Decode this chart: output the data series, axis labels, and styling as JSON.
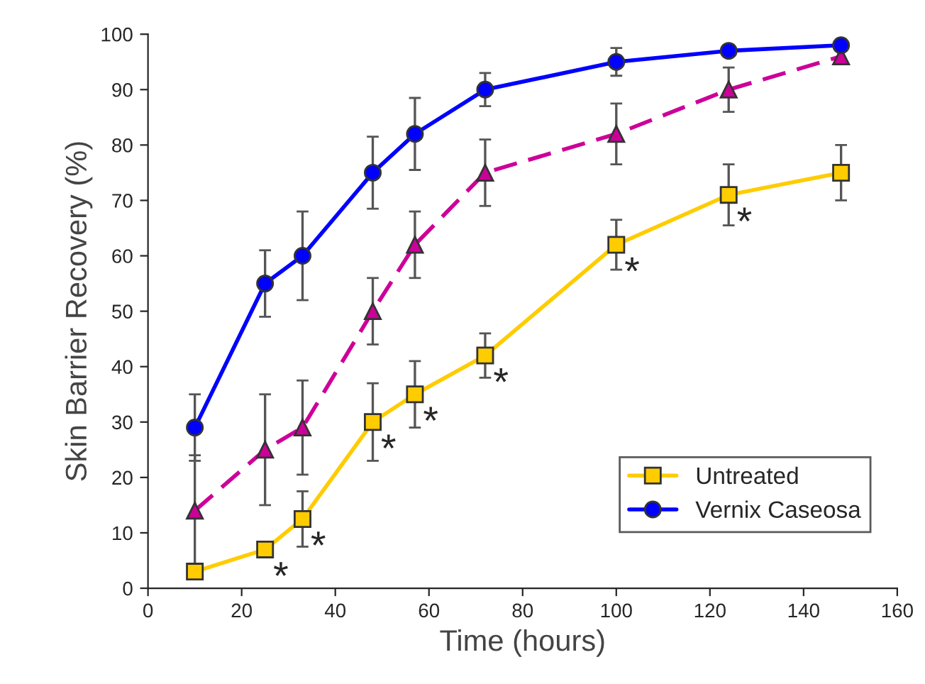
{
  "chart_data": {
    "type": "line",
    "xlabel": "Time (hours)",
    "ylabel": "Skin Barrier Recovery (%)",
    "xlim": [
      0,
      160
    ],
    "xticks": [
      0,
      20,
      40,
      60,
      80,
      100,
      120,
      140,
      160
    ],
    "ylim": [
      0,
      100
    ],
    "yticks": [
      0,
      10,
      20,
      30,
      40,
      50,
      60,
      70,
      80,
      90,
      100
    ],
    "x": [
      10,
      25,
      33,
      48,
      57,
      72,
      100,
      124,
      148
    ],
    "series": [
      {
        "name": "Untreated",
        "color": "#ffcc00",
        "marker": "square",
        "line_style": "solid",
        "values": [
          3,
          7,
          12.5,
          30,
          35,
          42,
          62,
          71,
          75
        ],
        "errors": [
          null,
          null,
          5,
          7,
          6,
          4,
          4.5,
          5.5,
          5
        ]
      },
      {
        "color": "#cc0099",
        "marker": "triangle",
        "line_style": "dashed",
        "values": [
          14,
          25,
          29,
          50,
          62,
          75,
          82,
          90,
          96
        ],
        "errors": [
          10,
          10,
          8.5,
          6,
          6,
          6,
          5.5,
          4,
          null
        ]
      },
      {
        "name": "Vernix Caseosa",
        "color": "#0000ff",
        "marker": "circle",
        "line_style": "solid",
        "values": [
          29,
          55,
          60,
          75,
          82,
          90,
          95,
          97,
          98
        ],
        "errors": [
          6,
          6,
          8,
          6.5,
          6.5,
          3,
          2.5,
          null,
          null
        ]
      }
    ],
    "annotations": [
      {
        "text": "*",
        "x": 25,
        "y": 7
      },
      {
        "text": "*",
        "x": 33,
        "y": 12.5
      },
      {
        "text": "*",
        "x": 48,
        "y": 30
      },
      {
        "text": "*",
        "x": 57,
        "y": 35
      },
      {
        "text": "*",
        "x": 72,
        "y": 42
      },
      {
        "text": "*",
        "x": 100,
        "y": 62
      },
      {
        "text": "*",
        "x": 124,
        "y": 71
      }
    ],
    "legend": "bottom right",
    "grid": false
  }
}
